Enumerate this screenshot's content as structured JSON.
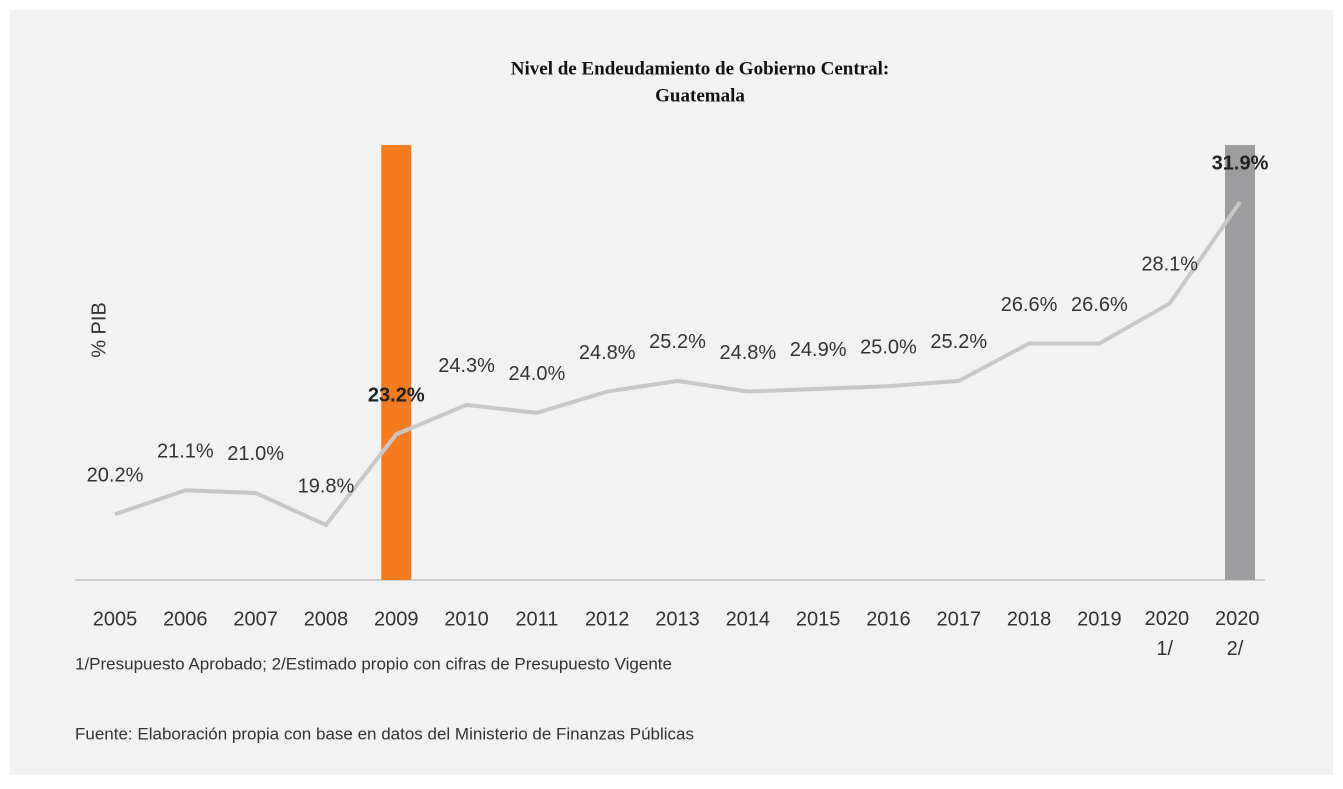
{
  "chart_data": {
    "type": "line",
    "title": [
      "Nivel de Endeudamiento de Gobierno Central:",
      "Guatemala"
    ],
    "y_label": "% PIB",
    "categories": [
      "2005",
      "2006",
      "2007",
      "2008",
      "2009",
      "2010",
      "2011",
      "2012",
      "2013",
      "2014",
      "2015",
      "2016",
      "2017",
      "2018",
      "2019",
      "2020 1/",
      "2020 2/"
    ],
    "values": [
      20.2,
      21.1,
      21.0,
      19.8,
      23.2,
      24.3,
      24.0,
      24.8,
      25.2,
      24.8,
      24.9,
      25.0,
      25.2,
      26.6,
      26.6,
      28.1,
      31.9
    ],
    "value_labels": [
      "20.2%",
      "21.1%",
      "21.0%",
      "19.8%",
      "23.2%",
      "24.3%",
      "24.0%",
      "24.8%",
      "25.2%",
      "24.8%",
      "24.9%",
      "25.0%",
      "25.2%",
      "26.6%",
      "26.6%",
      "28.1%",
      "31.9%"
    ],
    "color": "#c8c8c8",
    "highlight": [
      {
        "index": 4,
        "color": "#f47b20"
      },
      {
        "index": 16,
        "color": "#9d9d9f"
      }
    ],
    "note": "1/Presupuesto Aprobado; 2/Estimado propio con cifras de Presupuesto Vigente",
    "source": "Fuente: Elaboración propia con base en datos del Ministerio de Finanzas Públicas"
  }
}
